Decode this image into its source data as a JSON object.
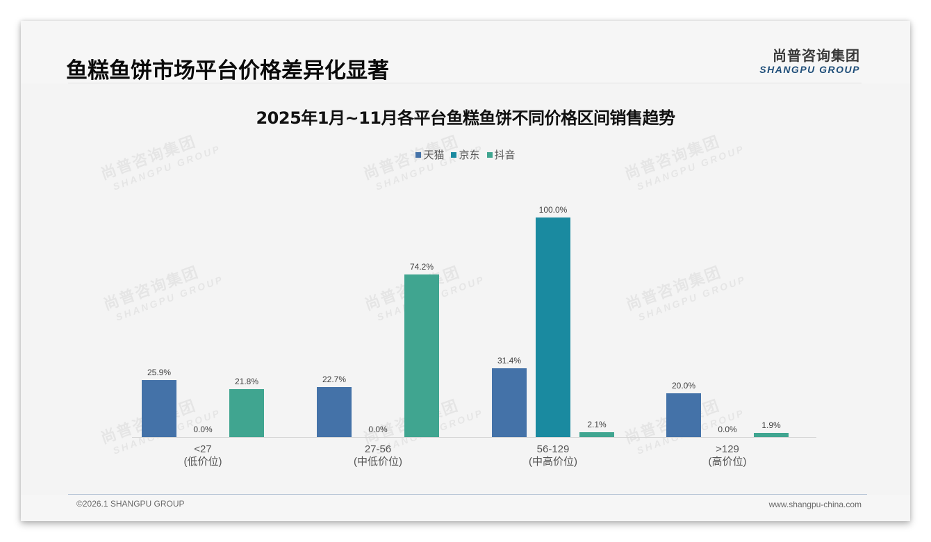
{
  "header": {
    "title": "鱼糕鱼饼市场平台价格差异化显著",
    "logo_cn": "尚普咨询集团",
    "logo_en": "SHANGPU GROUP"
  },
  "watermark": {
    "cn": "尚普咨询集团",
    "en": "SHANGPU GROUP"
  },
  "footer": {
    "copyright": "©2026.1 SHANGPU GROUP",
    "website": "www.shangpu-china.com"
  },
  "colors": {
    "tmall": "#4472a8",
    "jd": "#1a8aa0",
    "douyin": "#40a590"
  },
  "chart_data": {
    "type": "bar",
    "title": "2025年1月~11月各平台鱼糕鱼饼不同价格区间销售趋势",
    "xlabel": "",
    "ylabel": "",
    "ylim": [
      0,
      100
    ],
    "grid": false,
    "legend_position": "top",
    "categories": [
      "<27\n(低价位)",
      "27-56\n(中低价位)",
      "56-129\n(中高价位)",
      ">129\n(高价位)"
    ],
    "category_labels": [
      {
        "range": "<27",
        "tier": "(低价位)"
      },
      {
        "range": "27-56",
        "tier": "(中低价位)"
      },
      {
        "range": "56-129",
        "tier": "(中高价位)"
      },
      {
        "range": ">129",
        "tier": "(高价位)"
      }
    ],
    "series": [
      {
        "name": "天猫",
        "color": "#4472a8",
        "values": [
          25.9,
          22.7,
          31.4,
          20.0
        ],
        "labels": [
          "25.9%",
          "22.7%",
          "31.4%",
          "20.0%"
        ]
      },
      {
        "name": "京东",
        "color": "#1a8aa0",
        "values": [
          0.0,
          0.0,
          100.0,
          0.0
        ],
        "labels": [
          "0.0%",
          "0.0%",
          "100.0%",
          "0.0%"
        ]
      },
      {
        "name": "抖音",
        "color": "#40a590",
        "values": [
          21.8,
          74.2,
          2.1,
          1.9
        ],
        "labels": [
          "21.8%",
          "74.2%",
          "2.1%",
          "1.9%"
        ]
      }
    ],
    "value_unit": "%"
  }
}
